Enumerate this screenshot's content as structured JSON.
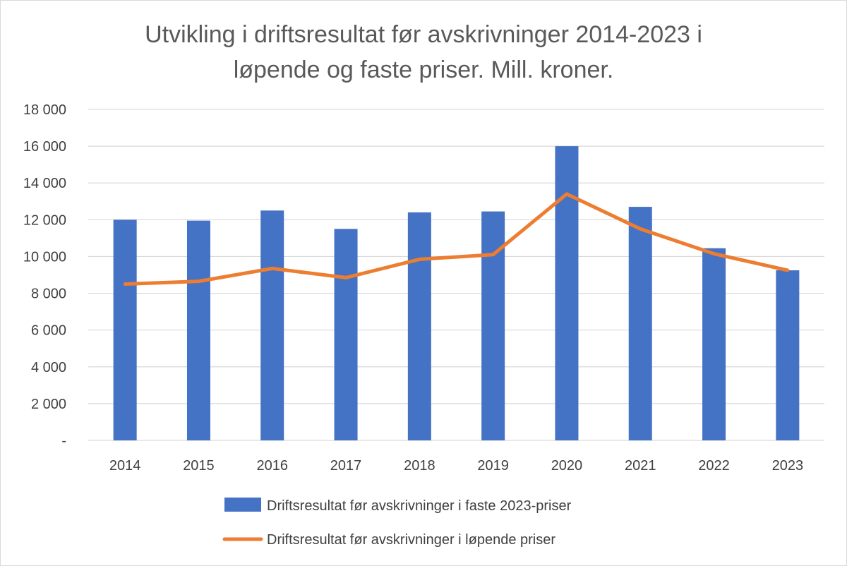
{
  "chart_data": {
    "type": "bar",
    "title_lines": [
      "Utvikling i driftsresultat før avskrivninger 2014-2023 i",
      "løpende og faste priser. Mill. kroner."
    ],
    "categories": [
      "2014",
      "2015",
      "2016",
      "2017",
      "2018",
      "2019",
      "2020",
      "2021",
      "2022",
      "2023"
    ],
    "ylim": [
      0,
      18000
    ],
    "yticks": [
      0,
      2000,
      4000,
      6000,
      8000,
      10000,
      12000,
      14000,
      16000,
      18000
    ],
    "ytick_labels": [
      "-",
      "2 000",
      "4 000",
      "6 000",
      "8 000",
      "10 000",
      "12 000",
      "14 000",
      "16 000",
      "18 000"
    ],
    "grid": true,
    "legend_position": "bottom",
    "series": [
      {
        "name": "Driftsresultat før avskrivninger i faste 2023-priser",
        "type": "bar",
        "color": "#4472C4",
        "values": [
          12000,
          11950,
          12500,
          11500,
          12400,
          12450,
          16000,
          12700,
          10450,
          9250
        ]
      },
      {
        "name": "Driftsresultat før avskrivninger i løpende priser",
        "type": "line",
        "color": "#ED7D31",
        "values": [
          8500,
          8650,
          9350,
          8850,
          9850,
          10100,
          13400,
          11500,
          10150,
          9250
        ]
      }
    ]
  }
}
